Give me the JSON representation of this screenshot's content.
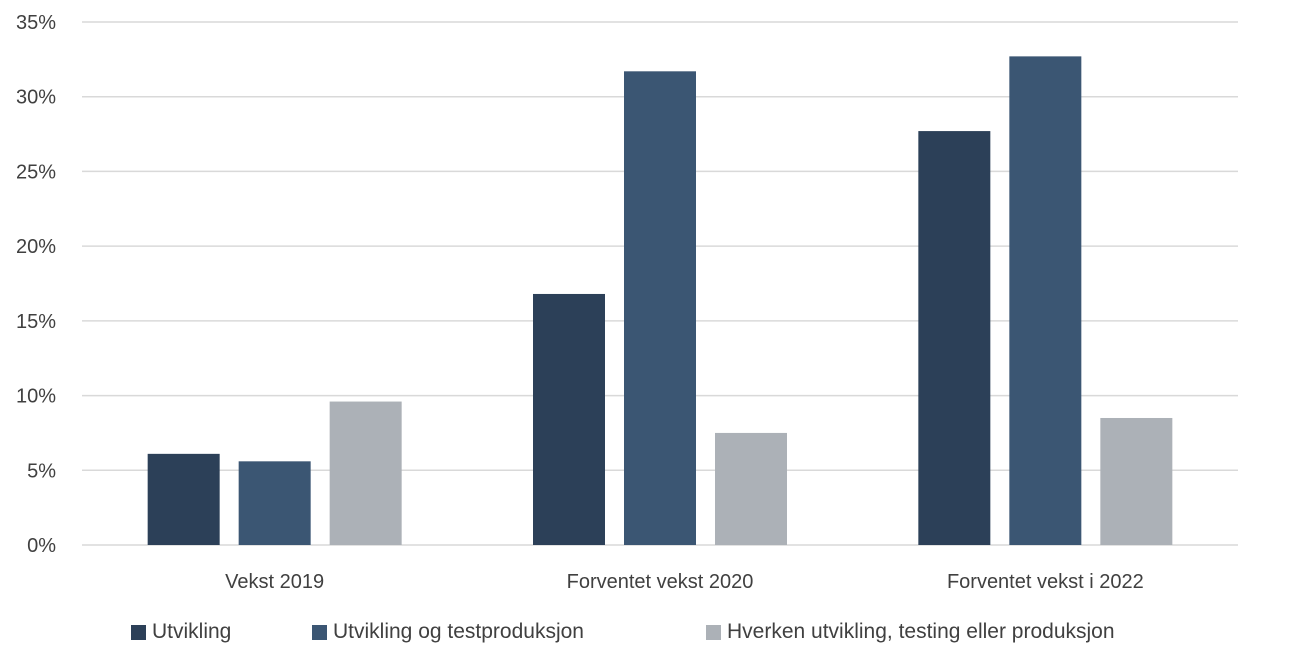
{
  "chart_data": {
    "type": "bar",
    "categories": [
      "Vekst 2019",
      "Forventet vekst 2020",
      "Forventet vekst i 2022"
    ],
    "series": [
      {
        "name": "Utvikling",
        "values": [
          6.1,
          16.8,
          27.7
        ],
        "color": "#2c4058"
      },
      {
        "name": "Utvikling og testproduksjon",
        "values": [
          5.6,
          31.7,
          32.7
        ],
        "color": "#3b5673"
      },
      {
        "name": "Hverken utvikling, testing eller produksjon",
        "values": [
          9.6,
          7.5,
          8.5
        ],
        "color": "#acb1b7"
      }
    ],
    "y_ticks": [
      "0%",
      "5%",
      "10%",
      "15%",
      "20%",
      "25%",
      "30%",
      "35%"
    ],
    "ylim": [
      0,
      35
    ],
    "grid": true,
    "legend_position": "bottom"
  }
}
